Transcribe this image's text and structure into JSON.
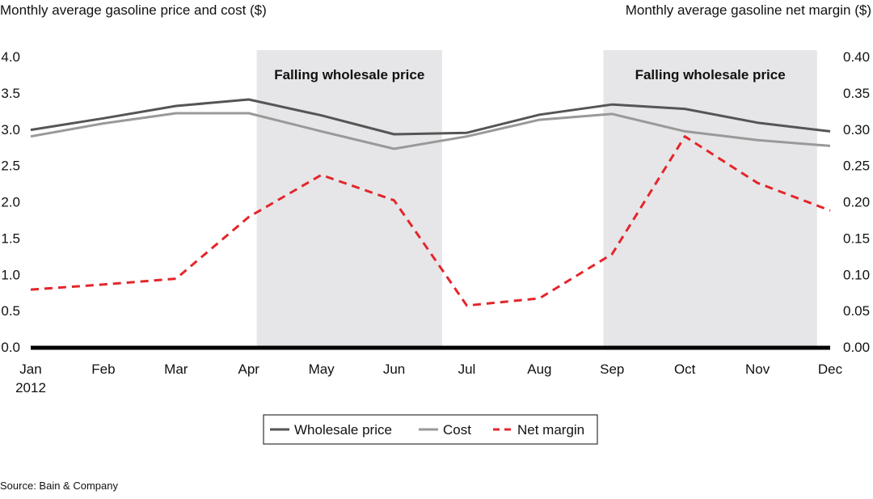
{
  "chart_data": {
    "type": "line",
    "left_axis_title": "Monthly average gasoline price and cost ($)",
    "right_axis_title": "Monthly average gasoline net margin ($)",
    "categories": [
      "Jan",
      "Feb",
      "Mar",
      "Apr",
      "May",
      "Jun",
      "Jul",
      "Aug",
      "Sep",
      "Oct",
      "Nov",
      "Dec"
    ],
    "year_label": "2012",
    "left_ylim": [
      0,
      4.0
    ],
    "left_ticks": [
      "0.0",
      "0.5",
      "1.0",
      "1.5",
      "2.0",
      "2.5",
      "3.0",
      "3.5",
      "4.0"
    ],
    "right_ylim": [
      0,
      0.4
    ],
    "right_ticks": [
      "0.00",
      "0.05",
      "0.10",
      "0.15",
      "0.20",
      "0.25",
      "0.30",
      "0.35",
      "0.40"
    ],
    "grid": false,
    "legend_position": "bottom-center",
    "series": [
      {
        "name": "Wholesale price",
        "axis": "left",
        "color": "#555555",
        "style": "solid",
        "values": [
          2.99,
          3.15,
          3.32,
          3.41,
          3.19,
          2.93,
          2.95,
          3.2,
          3.34,
          3.28,
          3.09,
          2.97
        ]
      },
      {
        "name": "Cost",
        "axis": "left",
        "color": "#999999",
        "style": "solid",
        "values": [
          2.9,
          3.08,
          3.22,
          3.22,
          2.97,
          2.73,
          2.9,
          3.13,
          3.21,
          2.97,
          2.85,
          2.77
        ]
      },
      {
        "name": "Net margin",
        "axis": "right",
        "color": "#e3262b",
        "style": "dashed",
        "values": [
          0.079,
          0.086,
          0.094,
          0.179,
          0.237,
          0.202,
          0.057,
          0.067,
          0.128,
          0.29,
          0.226,
          0.188
        ]
      }
    ],
    "annotations": [
      {
        "label": "Falling wholesale price",
        "month_range": [
          3.11,
          5.66
        ]
      },
      {
        "label": "Falling wholesale price",
        "month_range": [
          7.88,
          10.82
        ]
      }
    ],
    "source": "Source: Bain & Company"
  }
}
